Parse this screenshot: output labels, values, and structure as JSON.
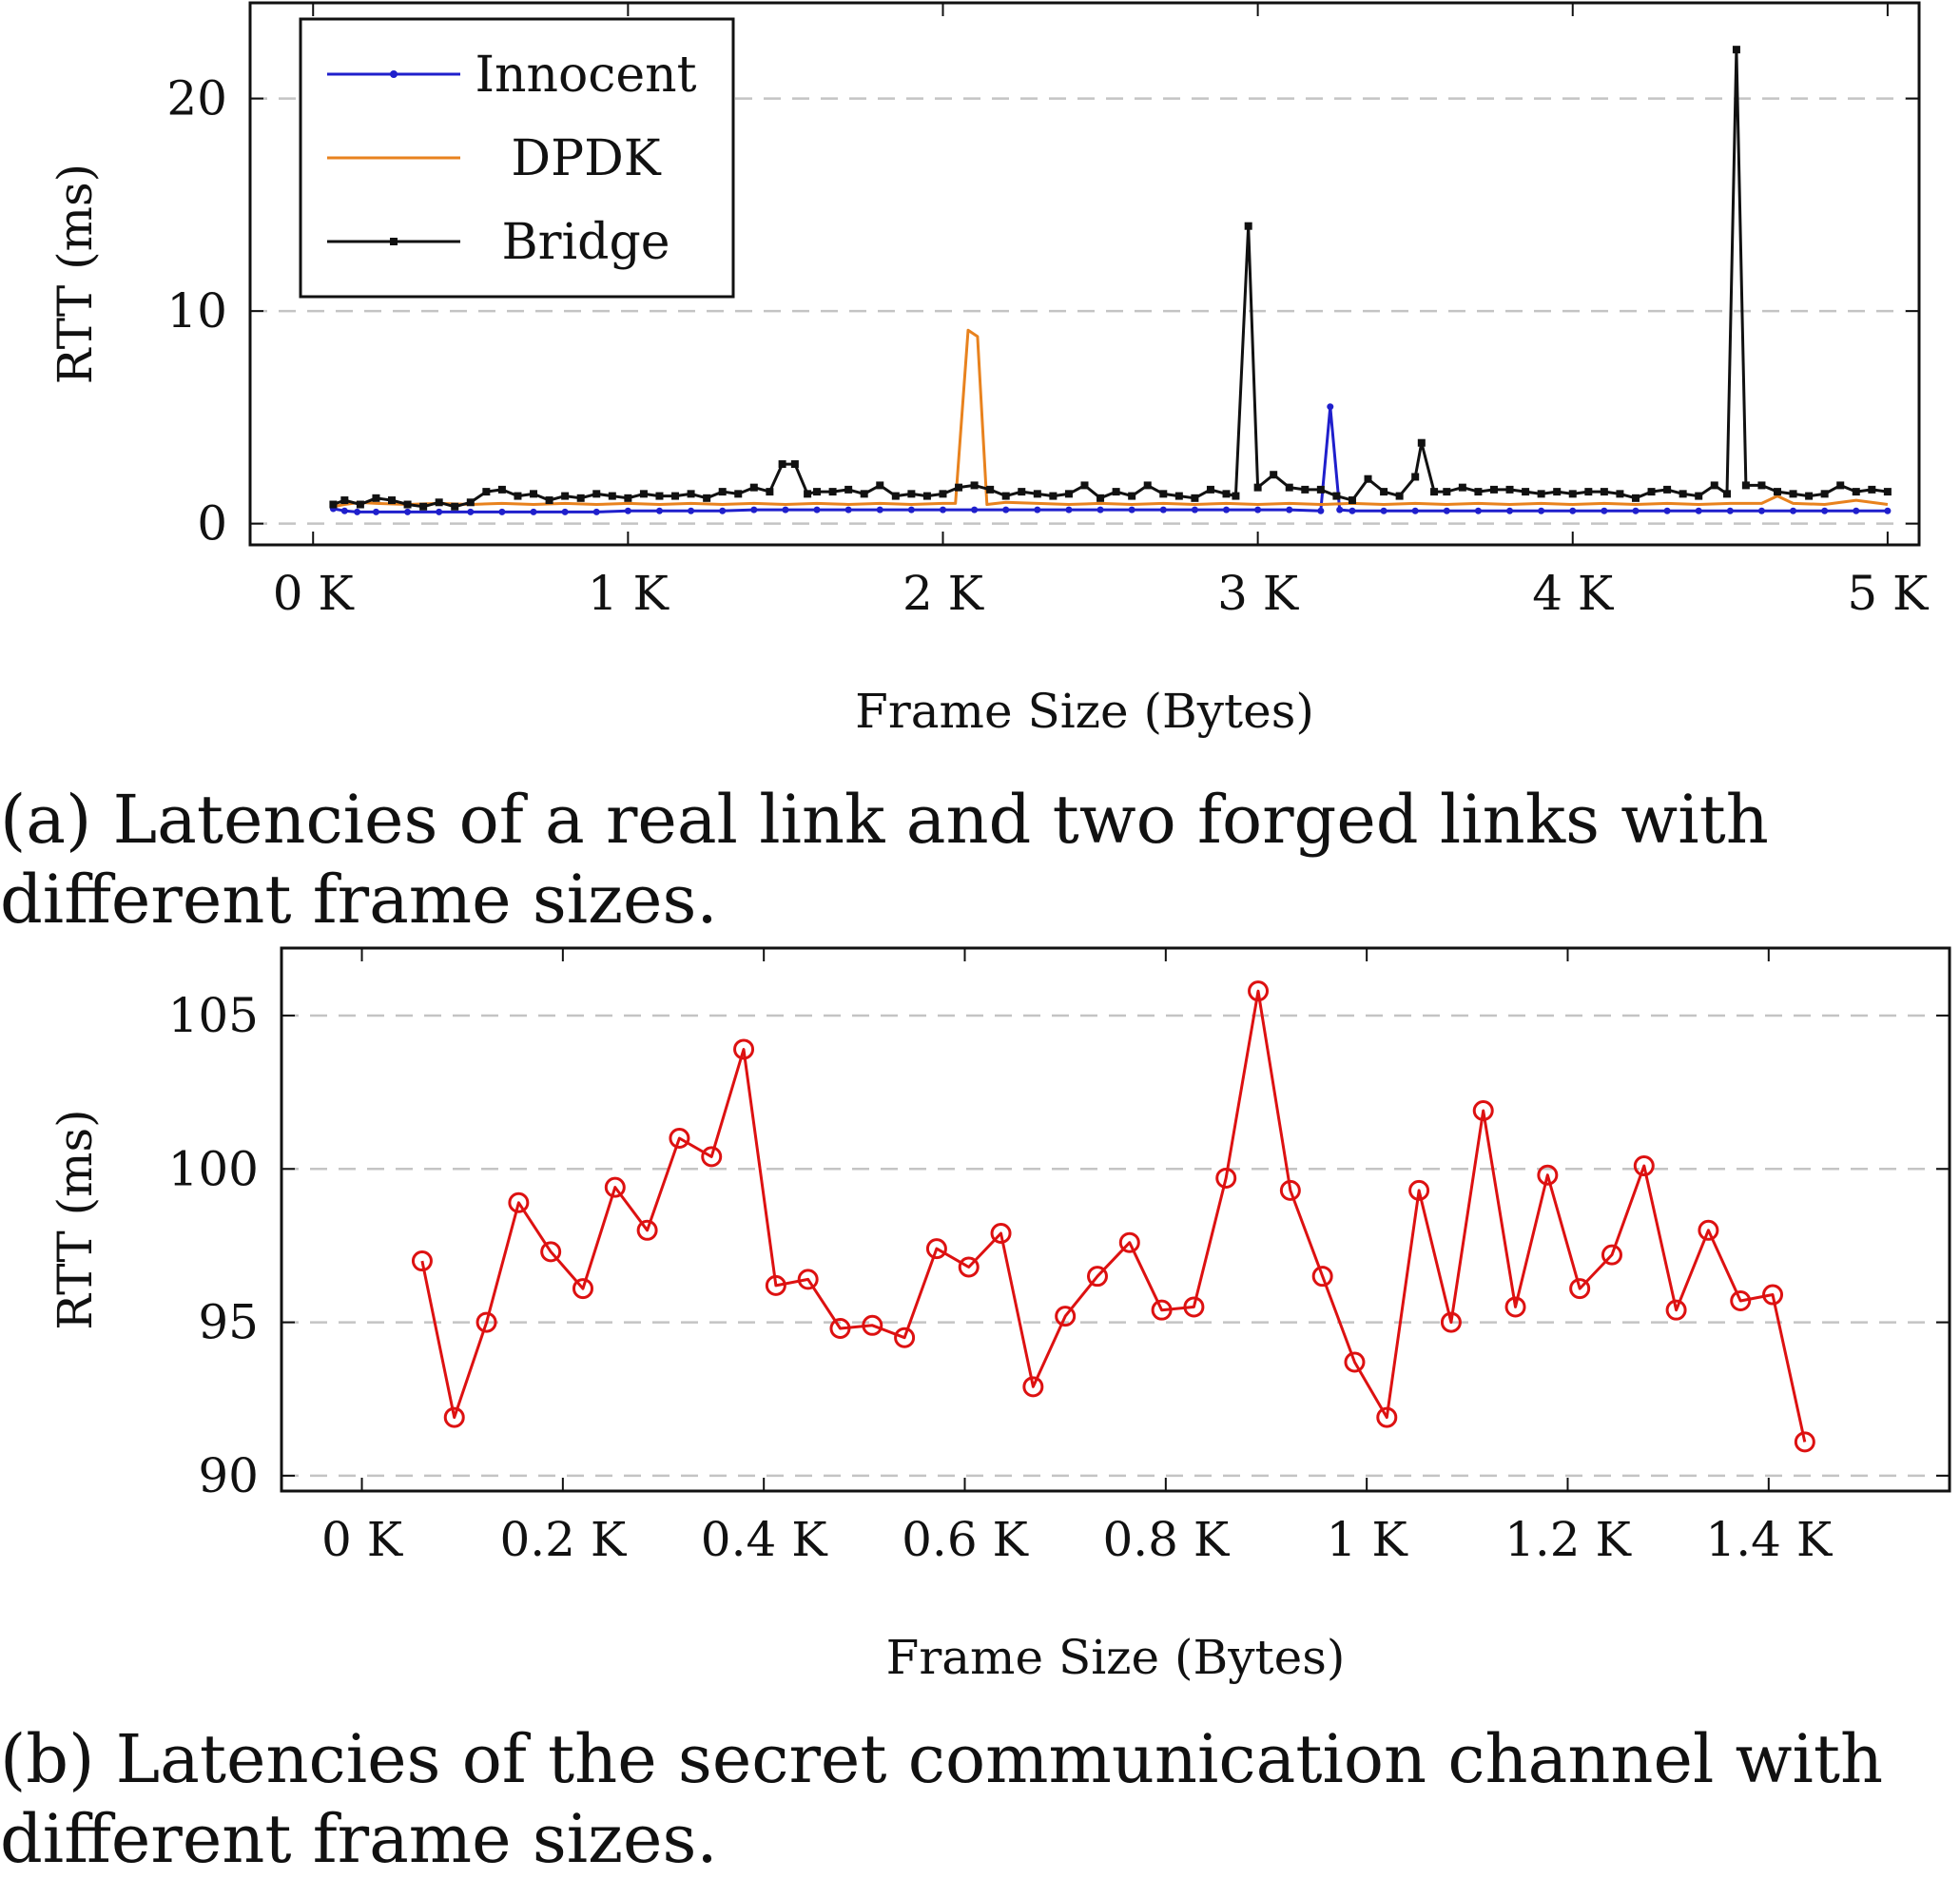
{
  "captions": {
    "a": "(a) Latencies of a real link and two forged links with different frame sizes.",
    "b": "(b) Latencies of the secret communication channel with different frame sizes."
  },
  "chart_data": [
    {
      "type": "line",
      "xlabel": "Frame Size (Bytes)",
      "ylabel": "RTT (ms)",
      "xlim": [
        -200,
        5100
      ],
      "ylim": [
        -1,
        24.5
      ],
      "xticks": [
        0,
        1000,
        2000,
        3000,
        4000,
        5000
      ],
      "xtick_labels": [
        "0 K",
        "1 K",
        "2 K",
        "3 K",
        "4 K",
        "5 K"
      ],
      "yticks": [
        0,
        10,
        20
      ],
      "ytick_labels": [
        "0",
        "10",
        "20"
      ],
      "grid": "horizontal dashed",
      "legend": "top-left",
      "series": [
        {
          "name": "Innocent",
          "color": "#1f1fcc",
          "marker": "dot",
          "x": [
            64,
            100,
            140,
            200,
            300,
            400,
            500,
            600,
            700,
            800,
            900,
            1000,
            1100,
            1200,
            1300,
            1400,
            1500,
            1600,
            1700,
            1800,
            1900,
            2000,
            2100,
            2200,
            2300,
            2400,
            2500,
            2600,
            2700,
            2800,
            2900,
            3000,
            3100,
            3200,
            3230,
            3260,
            3300,
            3400,
            3500,
            3600,
            3700,
            3800,
            3900,
            4000,
            4100,
            4200,
            4300,
            4400,
            4500,
            4600,
            4700,
            4800,
            4900,
            5000
          ],
          "y": [
            0.7,
            0.6,
            0.55,
            0.55,
            0.55,
            0.55,
            0.55,
            0.55,
            0.55,
            0.55,
            0.55,
            0.6,
            0.6,
            0.6,
            0.6,
            0.65,
            0.65,
            0.65,
            0.65,
            0.65,
            0.65,
            0.65,
            0.65,
            0.65,
            0.65,
            0.65,
            0.65,
            0.65,
            0.65,
            0.65,
            0.65,
            0.65,
            0.65,
            0.6,
            5.5,
            0.65,
            0.6,
            0.6,
            0.6,
            0.6,
            0.6,
            0.6,
            0.6,
            0.6,
            0.6,
            0.6,
            0.6,
            0.6,
            0.6,
            0.6,
            0.6,
            0.6,
            0.6,
            0.6
          ]
        },
        {
          "name": "DPDK",
          "color": "#e8821e",
          "marker": "none",
          "x": [
            64,
            100,
            150,
            200,
            300,
            400,
            500,
            600,
            700,
            800,
            900,
            1000,
            1100,
            1200,
            1300,
            1400,
            1500,
            1600,
            1700,
            1800,
            1900,
            2000,
            2040,
            2080,
            2110,
            2140,
            2200,
            2300,
            2400,
            2500,
            2600,
            2700,
            2800,
            2900,
            3000,
            3100,
            3200,
            3300,
            3400,
            3500,
            3600,
            3700,
            3800,
            3900,
            4000,
            4100,
            4200,
            4300,
            4400,
            4500,
            4600,
            4650,
            4700,
            4800,
            4900,
            5000
          ],
          "y": [
            0.8,
            0.9,
            1.0,
            0.95,
            0.9,
            0.95,
            0.9,
            0.95,
            0.9,
            0.95,
            0.9,
            0.95,
            0.9,
            0.95,
            0.9,
            0.95,
            0.9,
            0.95,
            0.9,
            0.95,
            0.9,
            0.95,
            0.95,
            9.1,
            8.8,
            0.9,
            1.0,
            0.95,
            0.9,
            0.95,
            0.9,
            0.95,
            0.9,
            0.95,
            0.9,
            0.95,
            0.9,
            0.95,
            0.9,
            0.95,
            0.9,
            0.95,
            0.9,
            0.95,
            0.9,
            0.95,
            0.9,
            0.95,
            0.9,
            0.95,
            0.95,
            1.3,
            0.95,
            0.9,
            1.1,
            0.9
          ]
        },
        {
          "name": "Bridge",
          "color": "#111111",
          "marker": "square",
          "x": [
            64,
            100,
            150,
            200,
            250,
            300,
            350,
            400,
            450,
            500,
            550,
            600,
            650,
            700,
            750,
            800,
            850,
            900,
            950,
            1000,
            1050,
            1100,
            1150,
            1200,
            1250,
            1300,
            1350,
            1400,
            1450,
            1490,
            1530,
            1570,
            1600,
            1650,
            1700,
            1750,
            1800,
            1850,
            1900,
            1950,
            2000,
            2050,
            2100,
            2150,
            2200,
            2250,
            2300,
            2350,
            2400,
            2450,
            2500,
            2550,
            2600,
            2650,
            2700,
            2750,
            2800,
            2850,
            2900,
            2930,
            2970,
            3000,
            3050,
            3100,
            3150,
            3200,
            3250,
            3300,
            3350,
            3400,
            3450,
            3500,
            3520,
            3560,
            3600,
            3650,
            3700,
            3750,
            3800,
            3850,
            3900,
            3950,
            4000,
            4050,
            4100,
            4150,
            4200,
            4250,
            4300,
            4350,
            4400,
            4450,
            4490,
            4520,
            4550,
            4600,
            4650,
            4700,
            4750,
            4800,
            4850,
            4900,
            4950,
            5000
          ],
          "y": [
            0.9,
            1.1,
            0.9,
            1.2,
            1.1,
            0.9,
            0.8,
            1.0,
            0.8,
            1.0,
            1.5,
            1.6,
            1.3,
            1.4,
            1.1,
            1.3,
            1.2,
            1.4,
            1.3,
            1.2,
            1.4,
            1.3,
            1.3,
            1.4,
            1.2,
            1.5,
            1.4,
            1.7,
            1.5,
            2.8,
            2.8,
            1.4,
            1.5,
            1.5,
            1.6,
            1.4,
            1.8,
            1.3,
            1.4,
            1.3,
            1.4,
            1.7,
            1.8,
            1.6,
            1.3,
            1.5,
            1.4,
            1.3,
            1.4,
            1.8,
            1.2,
            1.5,
            1.3,
            1.8,
            1.4,
            1.3,
            1.2,
            1.6,
            1.4,
            1.3,
            14.0,
            1.7,
            2.3,
            1.7,
            1.6,
            1.6,
            1.3,
            1.1,
            2.1,
            1.5,
            1.3,
            2.2,
            3.8,
            1.5,
            1.5,
            1.7,
            1.5,
            1.6,
            1.6,
            1.5,
            1.4,
            1.5,
            1.4,
            1.5,
            1.5,
            1.4,
            1.2,
            1.5,
            1.6,
            1.4,
            1.3,
            1.8,
            1.4,
            22.3,
            1.8,
            1.8,
            1.5,
            1.4,
            1.3,
            1.4,
            1.8,
            1.5,
            1.6,
            1.5
          ]
        }
      ]
    },
    {
      "type": "line",
      "xlabel": "Frame Size (Bytes)",
      "ylabel": "RTT (ms)",
      "xlim": [
        -80,
        1580
      ],
      "ylim": [
        89.5,
        107.2
      ],
      "xticks": [
        0,
        200,
        400,
        600,
        800,
        1000,
        1200,
        1400
      ],
      "xtick_labels": [
        "0 K",
        "0.2 K",
        "0.4 K",
        "0.6 K",
        "0.8 K",
        "1 K",
        "1.2 K",
        "1.4 K"
      ],
      "yticks": [
        90,
        95,
        100,
        105
      ],
      "ytick_labels": [
        "90",
        "95",
        "100",
        "105"
      ],
      "grid": "horizontal dashed",
      "legend": "none",
      "series": [
        {
          "color": "#dd1111",
          "marker": "circle",
          "x": [
            60,
            92,
            124,
            156,
            188,
            220,
            252,
            284,
            316,
            348,
            380,
            412,
            444,
            476,
            508,
            540,
            572,
            604,
            636,
            668,
            700,
            732,
            764,
            796,
            828,
            860,
            892,
            924,
            956,
            988,
            1020,
            1052,
            1084,
            1116,
            1148,
            1180,
            1212,
            1244,
            1276,
            1308,
            1340,
            1372,
            1404,
            1436
          ],
          "y": [
            97.0,
            91.9,
            95.0,
            98.9,
            97.3,
            96.1,
            99.4,
            98.0,
            101.0,
            100.4,
            103.9,
            96.2,
            96.4,
            94.8,
            94.9,
            94.5,
            97.4,
            96.8,
            97.9,
            92.9,
            95.2,
            96.5,
            97.6,
            95.4,
            95.5,
            99.7,
            105.8,
            99.3,
            96.5,
            93.7,
            91.9,
            99.3,
            95.0,
            101.9,
            95.5,
            99.8,
            96.1,
            97.2,
            100.1,
            95.4,
            98.0,
            95.7,
            95.9,
            91.1
          ]
        }
      ]
    }
  ]
}
